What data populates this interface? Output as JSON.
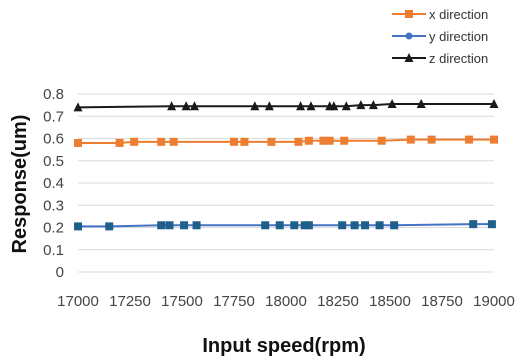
{
  "chart_data": {
    "type": "line",
    "title": "",
    "xlabel": "Input speed(rpm)",
    "ylabel": "Response(um)",
    "xlim": [
      17000,
      19000
    ],
    "ylim": [
      0,
      0.8
    ],
    "xticks": [
      "17000",
      "17250",
      "17500",
      "17750",
      "18000",
      "18250",
      "18500",
      "18750",
      "19000"
    ],
    "yticks": [
      "0",
      "0.1",
      "0.2",
      "0.3",
      "0.4",
      "0.5",
      "0.6",
      "0.7",
      "0.8"
    ],
    "grid": "horizontal",
    "legend_position": "top-right",
    "series": [
      {
        "name": "x direction",
        "color": "#ed7d31",
        "marker": "square",
        "x": [
          17000,
          17200,
          17270,
          17400,
          17460,
          17750,
          17800,
          17930,
          18060,
          18110,
          18180,
          18210,
          18280,
          18460,
          18600,
          18700,
          18880,
          19000
        ],
        "y": [
          0.58,
          0.58,
          0.585,
          0.585,
          0.585,
          0.585,
          0.585,
          0.585,
          0.585,
          0.59,
          0.59,
          0.59,
          0.59,
          0.59,
          0.595,
          0.595,
          0.595,
          0.595
        ]
      },
      {
        "name": "y direction",
        "color": "#4472c4",
        "marker": "circle",
        "x": [
          17000,
          17150,
          17400,
          17440,
          17510,
          17570,
          17900,
          17970,
          18040,
          18090,
          18110,
          18270,
          18330,
          18380,
          18450,
          18520,
          18900,
          18990
        ],
        "y": [
          0.205,
          0.205,
          0.21,
          0.21,
          0.21,
          0.21,
          0.21,
          0.21,
          0.21,
          0.21,
          0.21,
          0.21,
          0.21,
          0.21,
          0.21,
          0.21,
          0.215,
          0.215
        ]
      },
      {
        "name": "z direction",
        "color": "#1a1a1a",
        "marker": "triangle",
        "x": [
          17000,
          17450,
          17520,
          17560,
          17850,
          17920,
          18070,
          18120,
          18210,
          18230,
          18290,
          18360,
          18420,
          18510,
          18650,
          19000
        ],
        "y": [
          0.74,
          0.745,
          0.745,
          0.745,
          0.745,
          0.745,
          0.745,
          0.745,
          0.745,
          0.745,
          0.745,
          0.75,
          0.75,
          0.755,
          0.755,
          0.755
        ]
      }
    ]
  }
}
